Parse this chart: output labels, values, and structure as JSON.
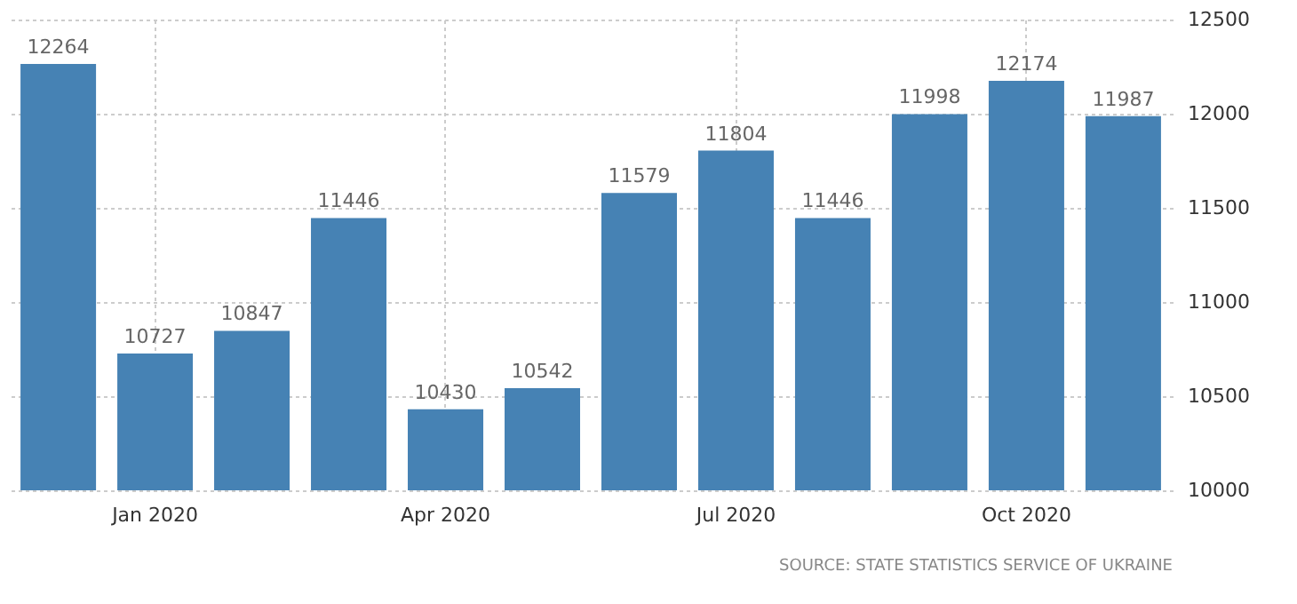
{
  "chart_data": {
    "type": "bar",
    "categories": [
      null,
      "Jan 2020",
      null,
      null,
      "Apr 2020",
      null,
      null,
      "Jul 2020",
      null,
      null,
      "Oct 2020",
      null
    ],
    "values": [
      12264,
      10727,
      10847,
      11446,
      10430,
      10542,
      11579,
      11804,
      11446,
      11998,
      12174,
      11987
    ],
    "color": "#4682b4",
    "ylim": [
      10000,
      12500
    ],
    "yticks": [
      10000,
      10500,
      11000,
      11500,
      12000,
      12500
    ],
    "grid": true,
    "data_labels": true,
    "annotations": [
      "SOURCE: STATE STATISTICS SERVICE OF UKRAINE"
    ]
  }
}
